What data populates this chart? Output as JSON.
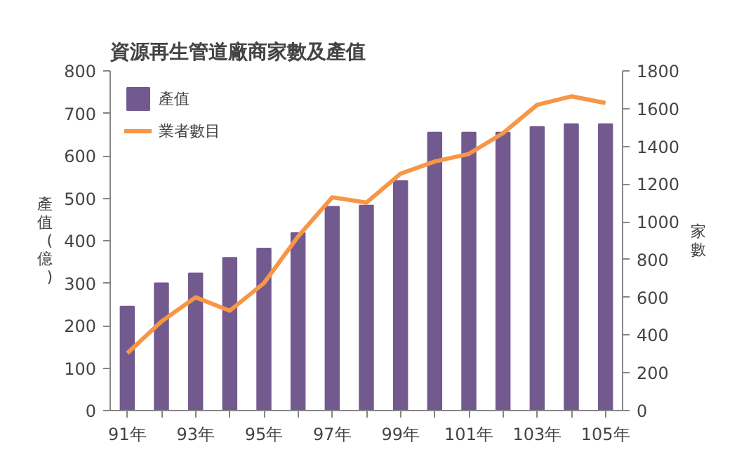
{
  "chart_data": {
    "type": "bar",
    "title": "資源再生管道廠商家數及產值",
    "ylabel": "產值(億)",
    "y2label": "家數",
    "categories": [
      "91年",
      null,
      "93年",
      null,
      "95年",
      null,
      "97年",
      null,
      "99年",
      null,
      "101年",
      null,
      "103年",
      null,
      "105年"
    ],
    "series": [
      {
        "name": "產值",
        "color": "#725a8f",
        "values": [
          245,
          300,
          323,
          360,
          382,
          418,
          480,
          483,
          541,
          655,
          655,
          655,
          668,
          675,
          675
        ]
      },
      {
        "name": "業者數目",
        "type": "line",
        "axis": "y2",
        "color": "#f79646",
        "values": [
          304,
          472,
          600,
          529,
          675,
          922,
          1130,
          1102,
          1255,
          1320,
          1360,
          1470,
          1620,
          1665,
          1630
        ]
      }
    ],
    "ylim": [
      0,
      800
    ],
    "yticks": [
      0,
      100,
      200,
      300,
      400,
      500,
      600,
      700,
      800
    ],
    "y2lim": [
      0,
      1800
    ],
    "y2ticks": [
      0,
      200,
      400,
      600,
      800,
      1000,
      1200,
      1400,
      1600,
      1800
    ],
    "legend": "top left",
    "grid": false
  }
}
